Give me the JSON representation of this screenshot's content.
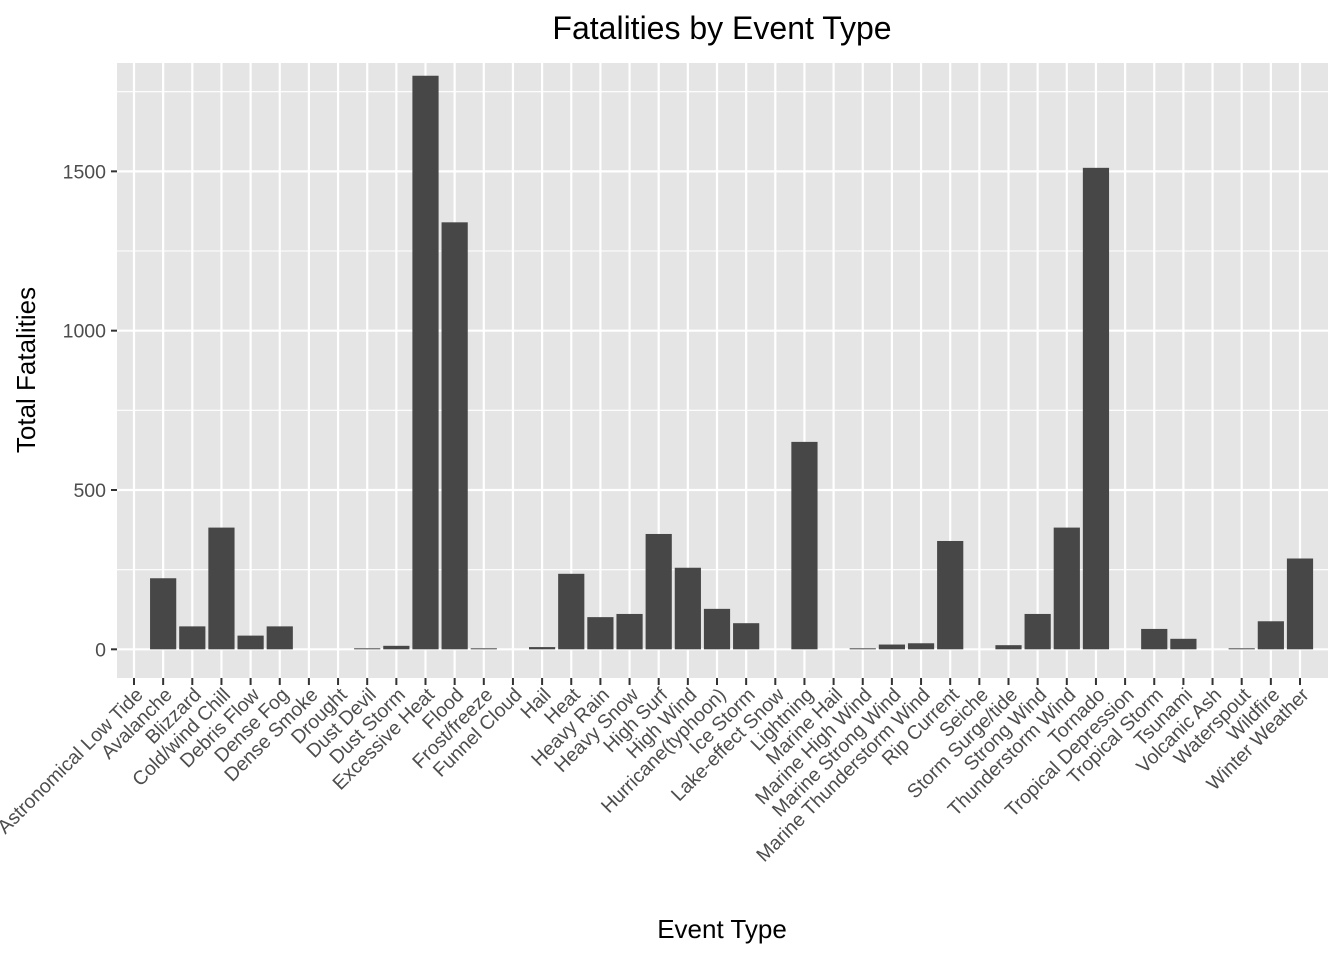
{
  "chart_data": {
    "type": "bar",
    "title": "Fatalities by Event Type",
    "xlabel": "Event Type",
    "ylabel": "Total Fatalities",
    "ylim": [
      -90,
      1840
    ],
    "yticks": [
      0,
      500,
      1000,
      1500
    ],
    "grid": true,
    "legend": "none",
    "colors": {
      "panel": "#e5e5e5",
      "grid": "#ffffff",
      "bar": "#474747"
    },
    "categories": [
      "Astronomical Low Tide",
      "Avalanche",
      "Blizzard",
      "Cold/wind Chill",
      "Debris Flow",
      "Dense Fog",
      "Dense Smoke",
      "Drought",
      "Dust Devil",
      "Dust Storm",
      "Excessive Heat",
      "Flood",
      "Frost/freeze",
      "Funnel Cloud",
      "Hail",
      "Heat",
      "Heavy Rain",
      "Heavy Snow",
      "High Surf",
      "High Wind",
      "Hurricane(typhoon)",
      "Ice Storm",
      "Lake-effect Snow",
      "Lightning",
      "Marine Hail",
      "Marine High Wind",
      "Marine Strong Wind",
      "Marine Thunderstorm Wind",
      "Rip Current",
      "Seiche",
      "Storm Surge/tide",
      "Strong Wind",
      "Thunderstorm Wind",
      "Tornado",
      "Tropical Depression",
      "Tropical Storm",
      "Tsunami",
      "Volcanic Ash",
      "Waterspout",
      "Wildfire",
      "Winter Weather"
    ],
    "values": [
      0,
      223,
      72,
      382,
      43,
      72,
      0,
      0,
      2,
      11,
      1800,
      1340,
      1,
      0,
      7,
      237,
      101,
      111,
      362,
      256,
      127,
      82,
      0,
      651,
      0,
      3,
      15,
      19,
      340,
      0,
      13,
      111,
      382,
      1511,
      0,
      64,
      33,
      0,
      2,
      88,
      285
    ]
  }
}
